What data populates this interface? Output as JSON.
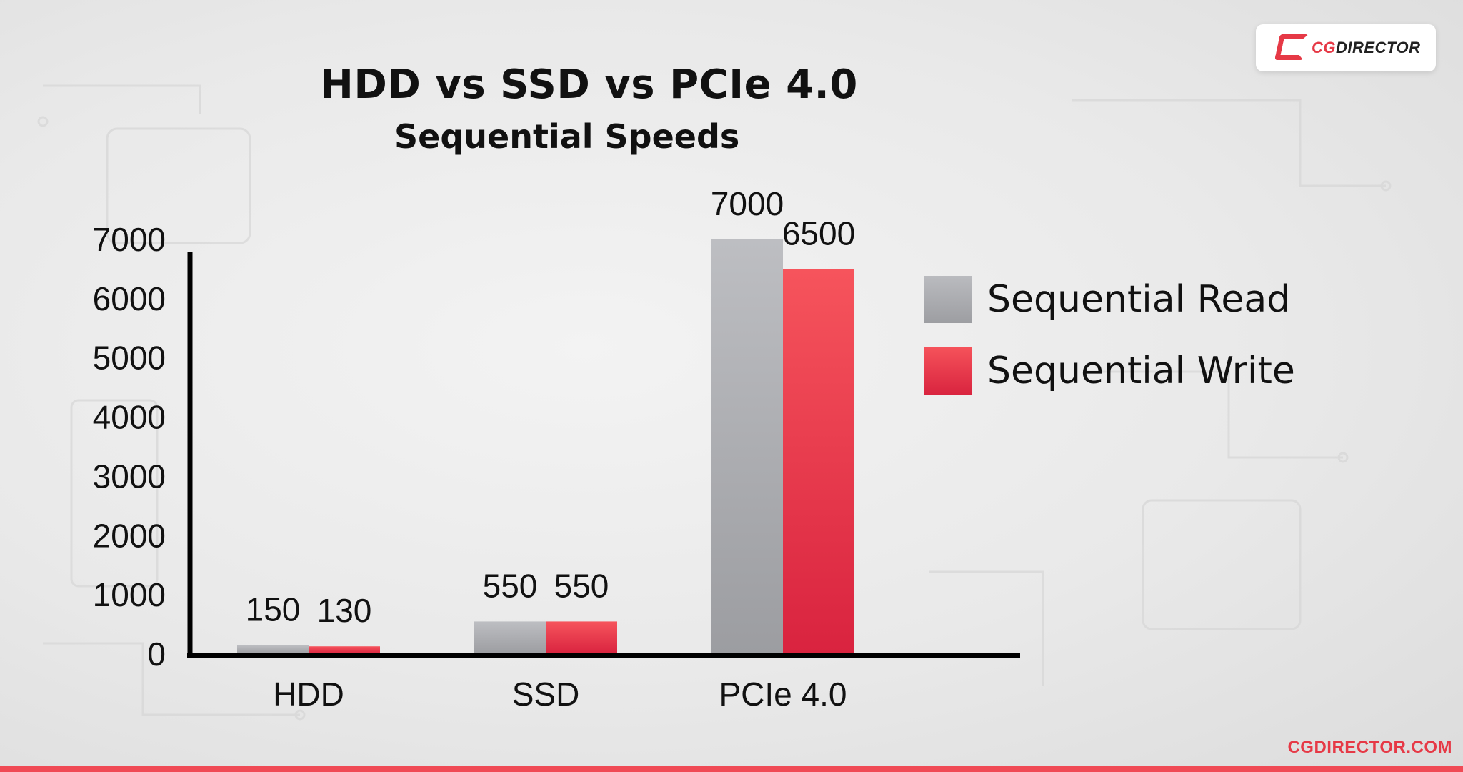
{
  "brand": {
    "logo_prefix": "CG",
    "logo_suffix": "DIRECTOR",
    "url": "CGDIRECTOR.COM",
    "accent_color": "#e63946"
  },
  "chart_data": {
    "type": "bar",
    "title": "HDD vs SSD vs PCIe 4.0",
    "subtitle": "Sequential Speeds",
    "categories": [
      "HDD",
      "SSD",
      "PCIe 4.0"
    ],
    "series": [
      {
        "name": "Sequential Read",
        "values": [
          150,
          550,
          7000
        ],
        "color": "#a9aaae"
      },
      {
        "name": "Sequential Write",
        "values": [
          130,
          550,
          6500
        ],
        "color": "#ea3448"
      }
    ],
    "ylim": [
      0,
      7000
    ],
    "yticks": [
      0,
      1000,
      2000,
      3000,
      4000,
      5000,
      6000,
      7000
    ],
    "grid": false,
    "legend_position": "right"
  }
}
